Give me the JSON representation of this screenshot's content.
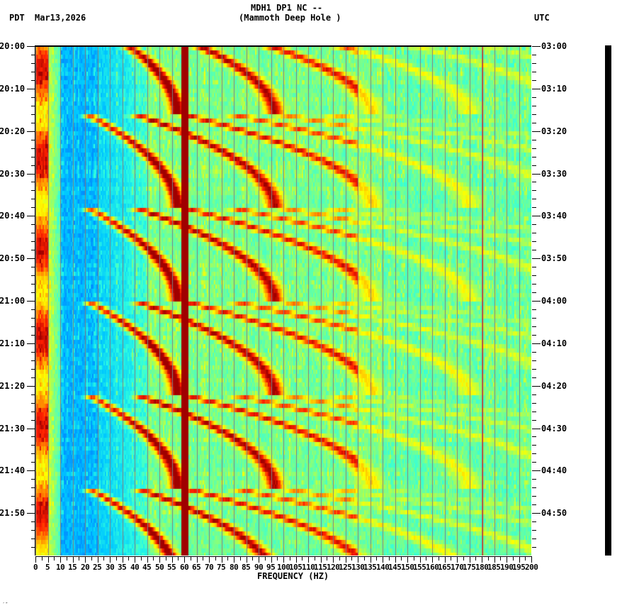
{
  "header": {
    "station_line": "MDH1 DP1 NC --",
    "location_line": "(Mammoth Deep Hole )",
    "left_timezone": "PDT",
    "date": "Mar13,2026",
    "right_timezone": "UTC"
  },
  "footer": {
    "corner_mark": "′″"
  },
  "chart_data": {
    "type": "heatmap",
    "subtype": "spectrogram",
    "title": "MDH1 DP1 NC -- (Mammoth Deep Hole )",
    "xlabel": "FREQUENCY (HZ)",
    "ylabel_left": "PDT",
    "ylabel_right": "UTC",
    "xlim": [
      0,
      200
    ],
    "x_ticks": [
      0,
      5,
      10,
      15,
      20,
      25,
      30,
      35,
      40,
      45,
      50,
      55,
      60,
      65,
      70,
      75,
      80,
      85,
      90,
      95,
      100,
      105,
      110,
      115,
      120,
      125,
      130,
      135,
      140,
      145,
      150,
      155,
      160,
      165,
      170,
      175,
      180,
      185,
      190,
      195,
      200
    ],
    "x_tick_labels": [
      "0",
      "5",
      "10",
      "15",
      "20",
      "25",
      "30",
      "35",
      "40",
      "45",
      "50",
      "55",
      "60",
      "65",
      "70",
      "75",
      "80",
      "85",
      "90",
      "95",
      "100",
      "105",
      "110",
      "115",
      "120",
      "125",
      "130",
      "135",
      "140",
      "145",
      "150",
      "155",
      "160",
      "165",
      "170",
      "175",
      "180",
      "185",
      "190",
      "195",
      "200"
    ],
    "y_left_labels": [
      "20:00",
      "20:10",
      "20:20",
      "20:30",
      "20:40",
      "20:50",
      "21:00",
      "21:10",
      "21:20",
      "21:30",
      "21:40",
      "21:50"
    ],
    "y_right_labels": [
      "03:00",
      "03:10",
      "03:20",
      "03:30",
      "03:40",
      "03:50",
      "04:00",
      "04:10",
      "04:20",
      "04:30",
      "04:40",
      "04:50"
    ],
    "time_range_pdt": [
      "20:00",
      "22:00"
    ],
    "time_range_utc": [
      "03:00",
      "05:00"
    ],
    "minor_tick_minutes": 2,
    "major_tick_minutes": 10,
    "grid": {
      "vertical_every_hz": 5,
      "color": "#808080"
    },
    "colormap": [
      "#0000c0",
      "#0060ff",
      "#00c8ff",
      "#30ffe0",
      "#a0ff60",
      "#ffff00",
      "#ffa000",
      "#ff2000",
      "#a00000"
    ],
    "persistent_lines_hz": [
      {
        "freq": 60,
        "intensity": "very high",
        "color": "#8b0000"
      },
      {
        "freq": 180,
        "intensity": "medium",
        "color": "#a00000"
      }
    ],
    "low_freq_band": {
      "range_hz": [
        0,
        5
      ],
      "intensity": "high"
    },
    "quiet_band": {
      "range_hz": [
        10,
        25
      ],
      "intensity": "low"
    },
    "gliding_harmonics": {
      "description": "Repeating upward-curving frequency glides (harmonic series) restarting about every 21-22 minutes",
      "cycle_start_minutes": [
        -6,
        16,
        38,
        60,
        82,
        104
      ],
      "cycle_length_minutes": 22,
      "fundamental_start_hz": 22,
      "fundamental_end_hz": 57,
      "harmonic_count": 7
    }
  }
}
